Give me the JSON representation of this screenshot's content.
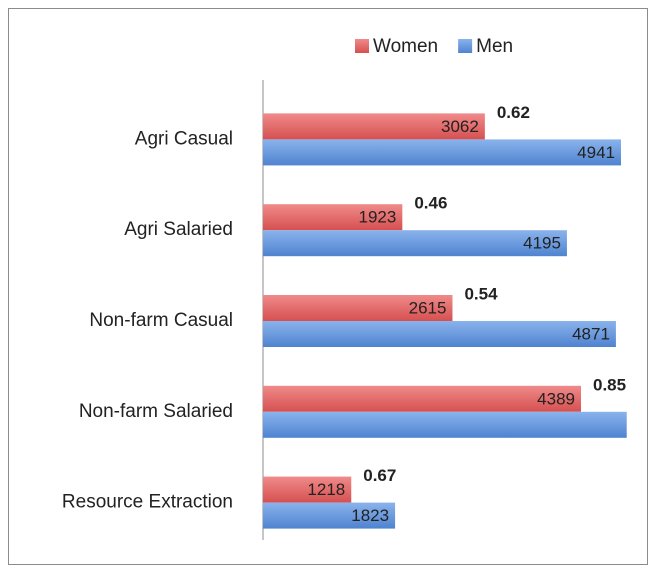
{
  "chart_data": {
    "type": "hbar",
    "categories": [
      "Agri Casual",
      "Agri Salaried",
      "Non-farm Casual",
      "Non-farm Salaried",
      "Resource Extraction"
    ],
    "series": [
      {
        "name": "Women",
        "color": "#e36b6b",
        "values": [
          3062,
          1923,
          2615,
          4389,
          1218
        ]
      },
      {
        "name": "Men",
        "color": "#6b9be0",
        "values": [
          4941,
          4195,
          4871,
          5020,
          1823
        ],
        "value_labels": [
          "4941",
          "4195",
          "4871",
          null,
          "1823"
        ]
      }
    ],
    "annotations": [
      0.62,
      0.46,
      0.54,
      0.85,
      0.67
    ],
    "xlim": [
      0,
      5300
    ],
    "legend": "top"
  }
}
